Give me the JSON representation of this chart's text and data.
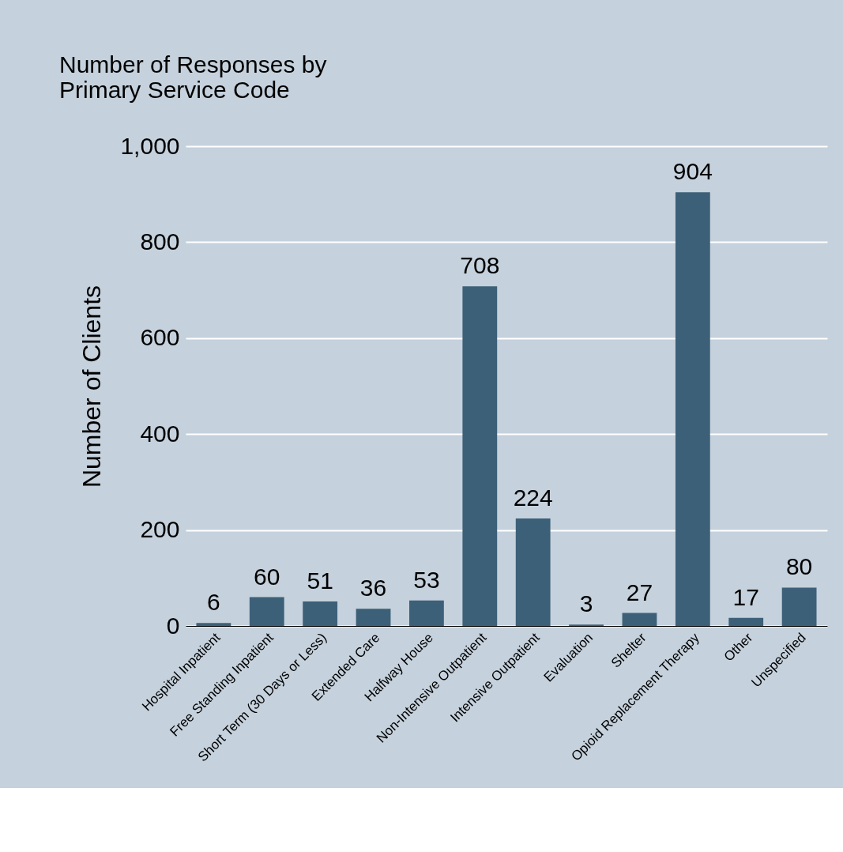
{
  "chart_data": {
    "type": "bar",
    "title": [
      "Number of Responses by",
      "Primary Service Code"
    ],
    "ylabel": "Number of Clients",
    "categories": [
      "Hospital Inpatient",
      "Free Standing Inpatient",
      "Short Term (30 Days or Less)",
      "Extended Care",
      "Halfway House",
      "Non-Intensive Outpatient",
      "Intensive Outpatient",
      "Evaluation",
      "Shelter",
      "Opioid Replacement Therapy",
      "Other",
      "Unspecified"
    ],
    "values": [
      6,
      60,
      51,
      36,
      53,
      708,
      224,
      3,
      27,
      904,
      17,
      80
    ],
    "color": "#3d6079",
    "ylim": [
      0,
      1000
    ],
    "yticks": [
      0,
      200,
      400,
      600,
      800,
      {
        "value": 1000,
        "label": "1,000"
      }
    ],
    "grid": "y",
    "data_labels": true
  }
}
